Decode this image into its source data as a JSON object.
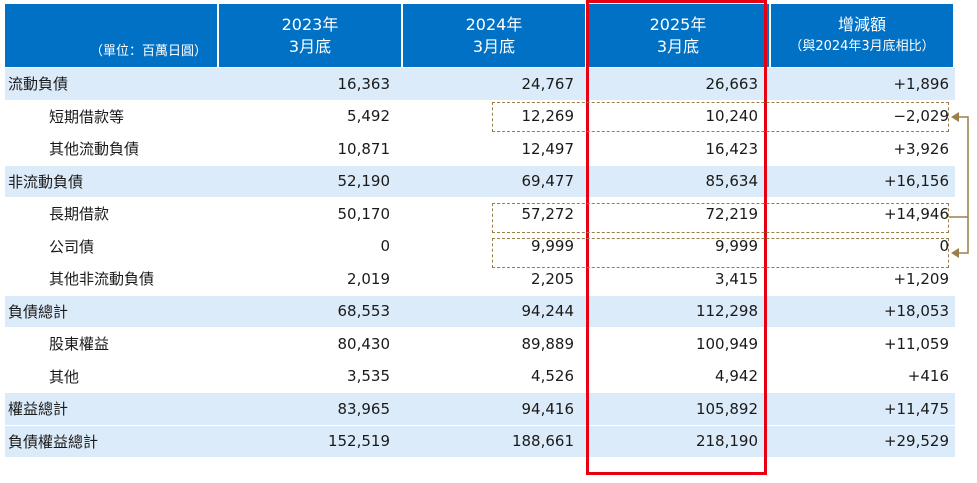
{
  "header": {
    "unit_label": "（單位：百萬日圓）",
    "col_2023_year": "2023年",
    "col_2023_sub": "3月底",
    "col_2024_year": "2024年",
    "col_2024_sub": "3月底",
    "col_2025_year": "2025年",
    "col_2025_sub": "3月底",
    "col_change_title": "增減額",
    "col_change_sub": "（與2024年3月底相比）"
  },
  "rows": [
    {
      "label": "流動負債",
      "v2023": "16,363",
      "v2024": "24,767",
      "v2025": "26,663",
      "change": "+1,896"
    },
    {
      "label": "短期借款等",
      "v2023": "5,492",
      "v2024": "12,269",
      "v2025": "10,240",
      "change": "−2,029"
    },
    {
      "label": "其他流動負債",
      "v2023": "10,871",
      "v2024": "12,497",
      "v2025": "16,423",
      "change": "+3,926"
    },
    {
      "label": "非流動負債",
      "v2023": "52,190",
      "v2024": "69,477",
      "v2025": "85,634",
      "change": "+16,156"
    },
    {
      "label": "長期借款",
      "v2023": "50,170",
      "v2024": "57,272",
      "v2025": "72,219",
      "change": "+14,946"
    },
    {
      "label": "公司債",
      "v2023": "0",
      "v2024": "9,999",
      "v2025": "9,999",
      "change": "0"
    },
    {
      "label": "其他非流動負債",
      "v2023": "2,019",
      "v2024": "2,205",
      "v2025": "3,415",
      "change": "+1,209"
    },
    {
      "label": "負債總計",
      "v2023": "68,553",
      "v2024": "94,244",
      "v2025": "112,298",
      "change": "+18,053"
    },
    {
      "label": "股東權益",
      "v2023": "80,430",
      "v2024": "89,889",
      "v2025": "100,949",
      "change": "+11,059"
    },
    {
      "label": "其他",
      "v2023": "3,535",
      "v2024": "4,526",
      "v2025": "4,942",
      "change": "+416"
    },
    {
      "label": "權益總計",
      "v2023": "83,965",
      "v2024": "94,416",
      "v2025": "105,892",
      "change": "+11,475"
    },
    {
      "label": "負債權益總計",
      "v2023": "152,519",
      "v2024": "188,661",
      "v2025": "218,190",
      "change": "+29,529"
    }
  ],
  "colors": {
    "header_bg": "#0071c5",
    "total_row_bg": "#dcebf9",
    "highlight_border": "#e60012",
    "dashed_border": "#9a8048"
  }
}
